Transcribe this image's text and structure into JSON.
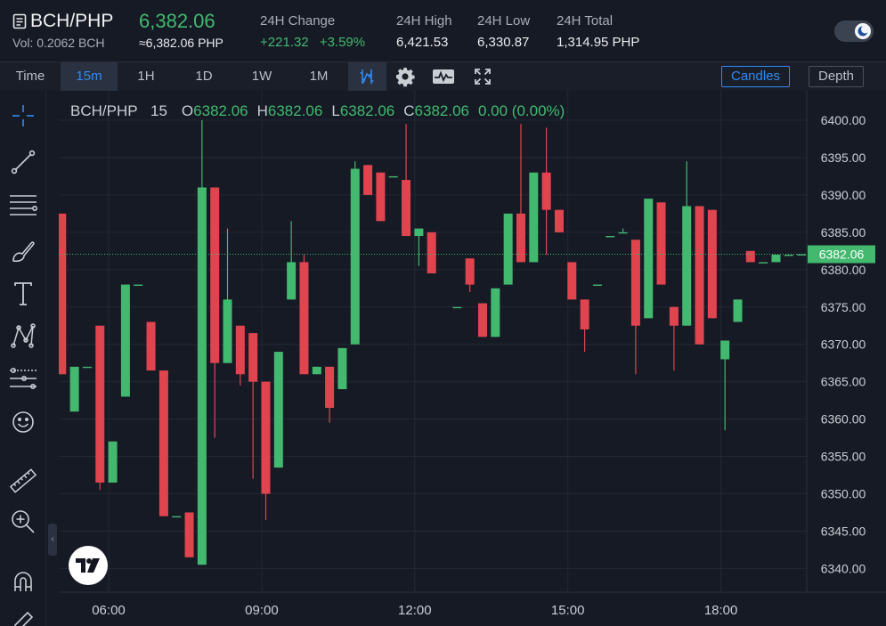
{
  "header": {
    "pair": "BCH/PHP",
    "volume": "Vol: 0.2062 BCH",
    "last_price": "6,382.06",
    "last_price_approx": "≈6,382.06 PHP",
    "change_label": "24H Change",
    "change_value": "+221.32",
    "change_percent": "+3.59%",
    "high_label": "24H High",
    "high_value": "6,421.53",
    "low_label": "24H Low",
    "low_value": "6,330.87",
    "total_label": "24H Total",
    "total_value": "1,314.95 PHP",
    "theme_toggle_icon": "moon-icon"
  },
  "toolbar": {
    "intervals": [
      "Time",
      "15m",
      "1H",
      "1D",
      "1W",
      "1M"
    ],
    "active_interval": "15m",
    "icons": [
      "indicator-icon",
      "gear-icon",
      "chart-type-icon",
      "fullscreen-icon"
    ],
    "candles_label": "Candles",
    "depth_label": "Depth",
    "active_view": "Candles"
  },
  "drawing_tools": [
    "crosshair-icon",
    "trendline-icon",
    "fib-icon",
    "brush-icon",
    "text-icon",
    "pattern-icon",
    "prediction-icon",
    "emoji-icon",
    "ruler-icon",
    "zoom-in-icon",
    "magnet-icon",
    "pencil-icon"
  ],
  "legend": {
    "symbol": "BCH/PHP",
    "interval": "15",
    "o_label": "O",
    "o_value": "6382.06",
    "h_label": "H",
    "h_value": "6382.06",
    "l_label": "L",
    "l_value": "6382.06",
    "c_label": "C",
    "c_value": "6382.06",
    "change": "0.00 (0.00%)"
  },
  "colors": {
    "up": "#43b96f",
    "down": "#e0454f",
    "accent": "#2f8cf5",
    "background": "#161a25"
  },
  "chart_data": {
    "type": "candlestick",
    "symbol": "BCH/PHP",
    "interval": "15",
    "ylim": [
      6337.5,
      6402.5
    ],
    "y_ticks": [
      "6400.00",
      "6395.00",
      "6390.00",
      "6385.00",
      "6380.00",
      "6375.00",
      "6370.00",
      "6365.00",
      "6360.00",
      "6355.00",
      "6350.00",
      "6345.00",
      "6340.00"
    ],
    "x_ticks": [
      "06:00",
      "09:00",
      "12:00",
      "15:00",
      "18:00"
    ],
    "x_tick_hours": [
      6,
      9,
      12,
      15,
      18
    ],
    "current_price": 6382.06,
    "current_price_label": "6382.06",
    "grid": true,
    "candles": [
      {
        "t": 5.08,
        "o": 6387.5,
        "h": 6387.5,
        "l": 6366.0,
        "c": 6366.0
      },
      {
        "t": 5.33,
        "o": 6361.0,
        "h": 6367.0,
        "l": 6361.0,
        "c": 6367.0
      },
      {
        "t": 5.58,
        "o": 6367.0,
        "h": 6367.0,
        "l": 6367.0,
        "c": 6367.0
      },
      {
        "t": 5.83,
        "o": 6372.5,
        "h": 6372.5,
        "l": 6350.5,
        "c": 6351.5
      },
      {
        "t": 6.08,
        "o": 6351.5,
        "h": 6357.0,
        "l": 6351.5,
        "c": 6357.0
      },
      {
        "t": 6.33,
        "o": 6363.0,
        "h": 6378.0,
        "l": 6363.0,
        "c": 6378.0
      },
      {
        "t": 6.58,
        "o": 6378.0,
        "h": 6378.0,
        "l": 6378.0,
        "c": 6378.0
      },
      {
        "t": 6.83,
        "o": 6373.0,
        "h": 6373.0,
        "l": 6366.5,
        "c": 6366.5
      },
      {
        "t": 7.08,
        "o": 6366.5,
        "h": 6366.5,
        "l": 6347.0,
        "c": 6347.0
      },
      {
        "t": 7.33,
        "o": 6347.0,
        "h": 6347.0,
        "l": 6347.0,
        "c": 6347.0
      },
      {
        "t": 7.58,
        "o": 6347.5,
        "h": 6347.5,
        "l": 6341.5,
        "c": 6341.5
      },
      {
        "t": 7.83,
        "o": 6340.5,
        "h": 6400.0,
        "l": 6340.5,
        "c": 6391.0
      },
      {
        "t": 8.08,
        "o": 6391.0,
        "h": 6391.0,
        "l": 6357.5,
        "c": 6367.5
      },
      {
        "t": 8.33,
        "o": 6367.5,
        "h": 6385.5,
        "l": 6367.5,
        "c": 6376.0
      },
      {
        "t": 8.58,
        "o": 6372.5,
        "h": 6372.5,
        "l": 6364.5,
        "c": 6366.0
      },
      {
        "t": 8.83,
        "o": 6371.5,
        "h": 6371.5,
        "l": 6352.0,
        "c": 6365.0
      },
      {
        "t": 9.08,
        "o": 6365.0,
        "h": 6365.0,
        "l": 6346.5,
        "c": 6350.0
      },
      {
        "t": 9.33,
        "o": 6353.5,
        "h": 6369.0,
        "l": 6353.5,
        "c": 6369.0
      },
      {
        "t": 9.58,
        "o": 6376.0,
        "h": 6386.5,
        "l": 6376.0,
        "c": 6381.0
      },
      {
        "t": 9.83,
        "o": 6381.0,
        "h": 6382.0,
        "l": 6366.0,
        "c": 6366.0
      },
      {
        "t": 10.08,
        "o": 6366.0,
        "h": 6367.0,
        "l": 6366.0,
        "c": 6367.0
      },
      {
        "t": 10.33,
        "o": 6367.0,
        "h": 6367.0,
        "l": 6359.5,
        "c": 6361.5
      },
      {
        "t": 10.58,
        "o": 6364.0,
        "h": 6369.5,
        "l": 6364.0,
        "c": 6369.5
      },
      {
        "t": 10.83,
        "o": 6370.0,
        "h": 6394.5,
        "l": 6370.0,
        "c": 6393.5
      },
      {
        "t": 11.08,
        "o": 6394.0,
        "h": 6394.0,
        "l": 6390.0,
        "c": 6390.0
      },
      {
        "t": 11.33,
        "o": 6393.0,
        "h": 6393.0,
        "l": 6386.5,
        "c": 6386.5
      },
      {
        "t": 11.58,
        "o": 6392.5,
        "h": 6392.5,
        "l": 6392.5,
        "c": 6392.5
      },
      {
        "t": 11.83,
        "o": 6392.0,
        "h": 6399.5,
        "l": 6384.5,
        "c": 6384.5
      },
      {
        "t": 12.08,
        "o": 6384.5,
        "h": 6385.5,
        "l": 6380.5,
        "c": 6385.5
      },
      {
        "t": 12.33,
        "o": 6385.0,
        "h": 6385.0,
        "l": 6379.5,
        "c": 6379.5
      },
      {
        "t": 12.83,
        "o": 6375.0,
        "h": 6375.0,
        "l": 6375.0,
        "c": 6375.0
      },
      {
        "t": 13.08,
        "o": 6381.5,
        "h": 6381.5,
        "l": 6377.0,
        "c": 6378.0
      },
      {
        "t": 13.33,
        "o": 6375.5,
        "h": 6375.5,
        "l": 6371.0,
        "c": 6371.0
      },
      {
        "t": 13.58,
        "o": 6371.0,
        "h": 6377.5,
        "l": 6371.0,
        "c": 6377.5
      },
      {
        "t": 13.83,
        "o": 6378.0,
        "h": 6387.5,
        "l": 6378.0,
        "c": 6387.5
      },
      {
        "t": 14.08,
        "o": 6387.5,
        "h": 6399.5,
        "l": 6381.0,
        "c": 6381.0
      },
      {
        "t": 14.33,
        "o": 6381.0,
        "h": 6393.0,
        "l": 6381.0,
        "c": 6393.0
      },
      {
        "t": 14.58,
        "o": 6393.0,
        "h": 6399.0,
        "l": 6382.0,
        "c": 6388.0
      },
      {
        "t": 14.83,
        "o": 6388.0,
        "h": 6388.0,
        "l": 6385.0,
        "c": 6385.0
      },
      {
        "t": 15.08,
        "o": 6381.0,
        "h": 6381.0,
        "l": 6376.0,
        "c": 6376.0
      },
      {
        "t": 15.33,
        "o": 6376.0,
        "h": 6376.0,
        "l": 6369.0,
        "c": 6372.0
      },
      {
        "t": 15.58,
        "o": 6378.0,
        "h": 6378.0,
        "l": 6378.0,
        "c": 6378.0
      },
      {
        "t": 15.83,
        "o": 6384.5,
        "h": 6384.5,
        "l": 6384.5,
        "c": 6384.5
      },
      {
        "t": 16.08,
        "o": 6385.0,
        "h": 6385.5,
        "l": 6385.0,
        "c": 6385.0
      },
      {
        "t": 16.33,
        "o": 6384.0,
        "h": 6384.0,
        "l": 6366.0,
        "c": 6372.5
      },
      {
        "t": 16.58,
        "o": 6373.5,
        "h": 6389.5,
        "l": 6373.5,
        "c": 6389.5
      },
      {
        "t": 16.83,
        "o": 6389.0,
        "h": 6389.0,
        "l": 6378.0,
        "c": 6378.0
      },
      {
        "t": 17.08,
        "o": 6375.0,
        "h": 6375.0,
        "l": 6366.5,
        "c": 6372.5
      },
      {
        "t": 17.33,
        "o": 6372.5,
        "h": 6394.5,
        "l": 6372.5,
        "c": 6388.5
      },
      {
        "t": 17.58,
        "o": 6388.5,
        "h": 6388.5,
        "l": 6370.0,
        "c": 6370.0
      },
      {
        "t": 17.83,
        "o": 6388.0,
        "h": 6388.0,
        "l": 6373.5,
        "c": 6373.5
      },
      {
        "t": 18.08,
        "o": 6368.0,
        "h": 6370.5,
        "l": 6358.5,
        "c": 6370.5
      },
      {
        "t": 18.33,
        "o": 6373.0,
        "h": 6376.0,
        "l": 6373.0,
        "c": 6376.0
      },
      {
        "t": 18.58,
        "o": 6382.5,
        "h": 6382.5,
        "l": 6381.0,
        "c": 6381.0
      },
      {
        "t": 18.83,
        "o": 6381.0,
        "h": 6381.0,
        "l": 6381.0,
        "c": 6381.0
      },
      {
        "t": 19.08,
        "o": 6381.0,
        "h": 6382.0,
        "l": 6381.0,
        "c": 6382.0
      },
      {
        "t": 19.33,
        "o": 6382.0,
        "h": 6382.0,
        "l": 6382.0,
        "c": 6382.0
      },
      {
        "t": 19.58,
        "o": 6382.06,
        "h": 6382.06,
        "l": 6382.06,
        "c": 6382.06
      }
    ]
  }
}
